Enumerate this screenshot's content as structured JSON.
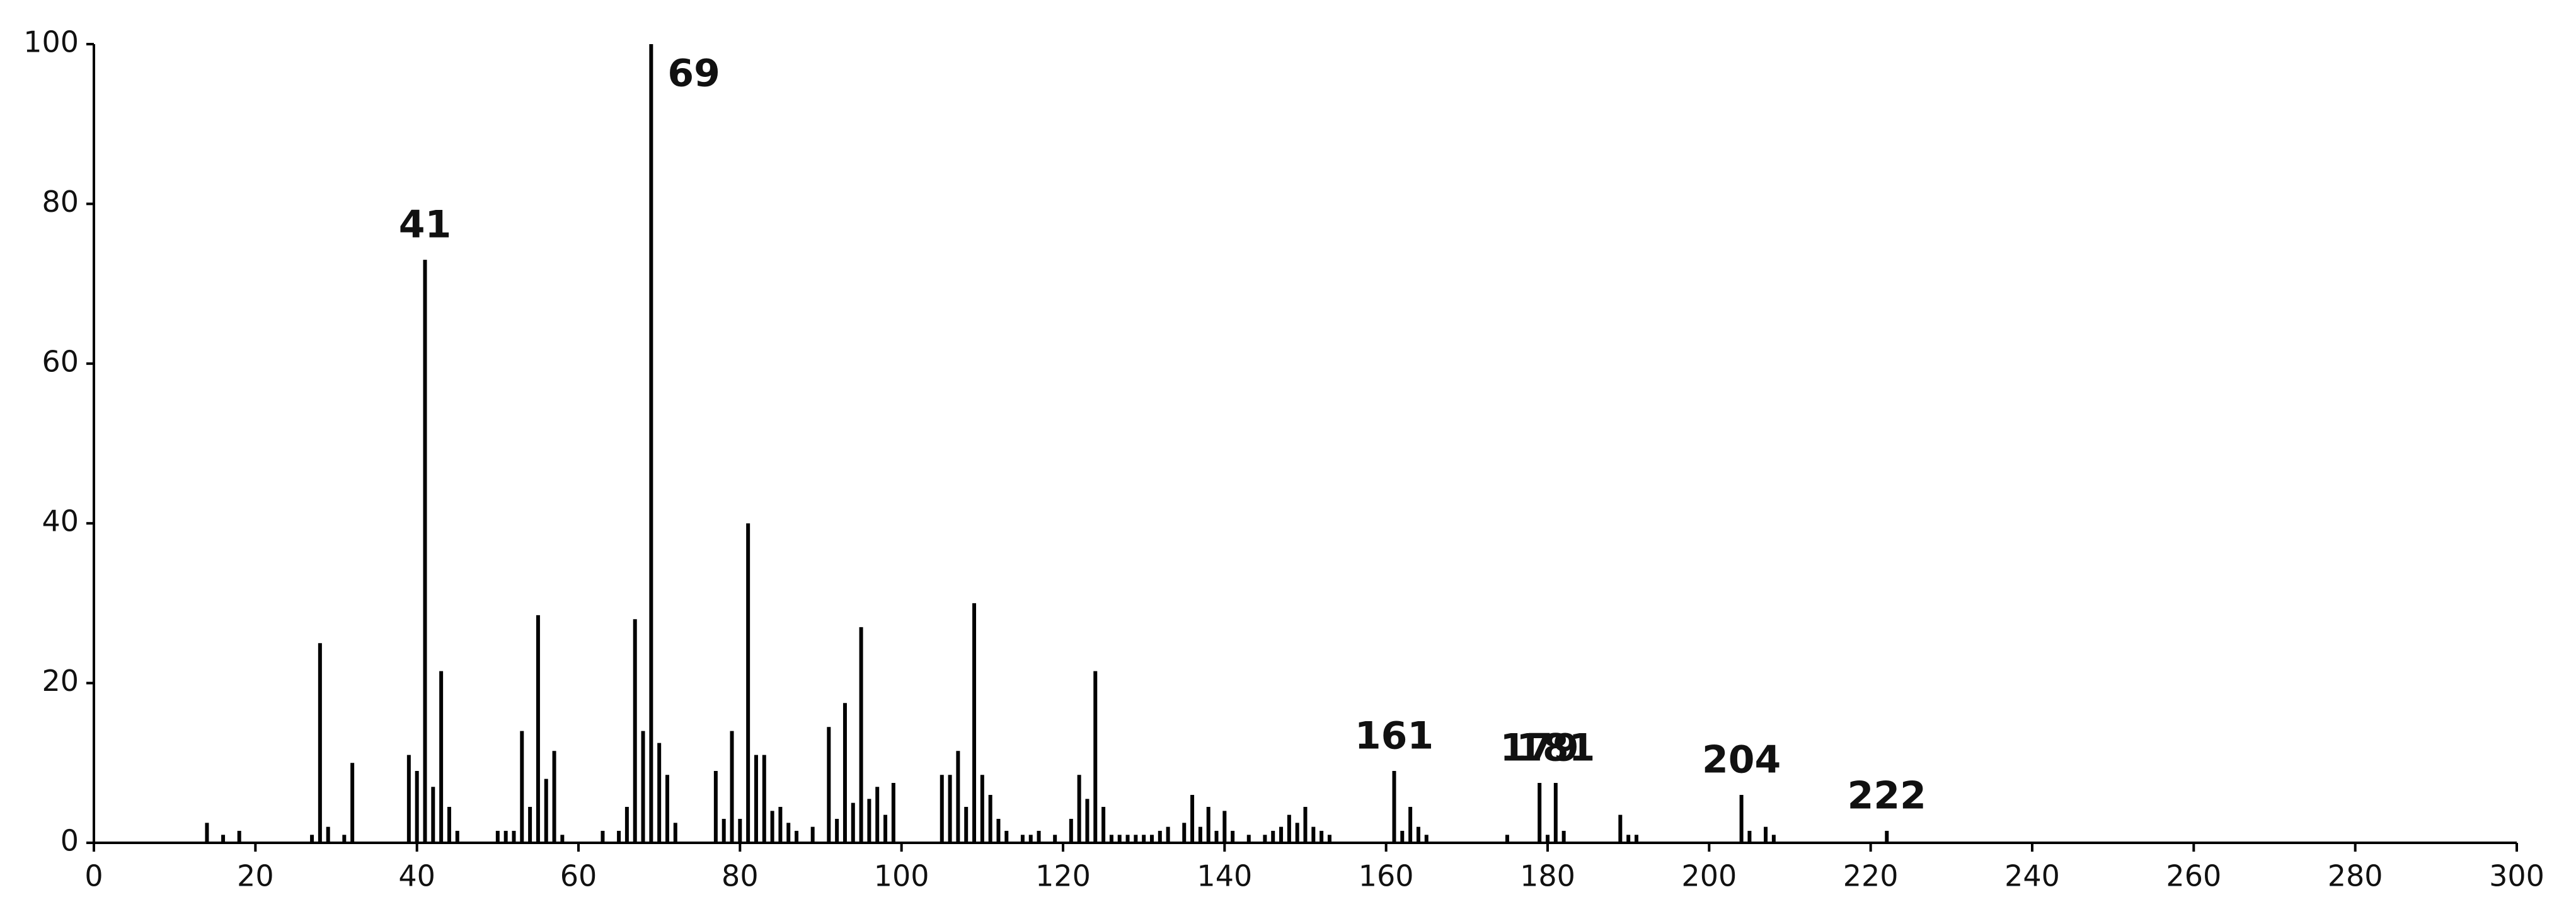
{
  "chart_data": {
    "type": "stem",
    "x": [
      14,
      16,
      18,
      27,
      28,
      29,
      31,
      32,
      39,
      40,
      41,
      42,
      43,
      44,
      45,
      50,
      51,
      52,
      53,
      54,
      55,
      56,
      57,
      58,
      63,
      65,
      66,
      67,
      68,
      69,
      70,
      71,
      72,
      77,
      78,
      79,
      80,
      81,
      82,
      83,
      84,
      85,
      86,
      87,
      89,
      91,
      92,
      93,
      94,
      95,
      96,
      97,
      98,
      99,
      105,
      106,
      107,
      108,
      109,
      110,
      111,
      112,
      113,
      115,
      116,
      117,
      119,
      121,
      122,
      123,
      124,
      125,
      126,
      127,
      128,
      129,
      130,
      131,
      132,
      133,
      135,
      136,
      137,
      138,
      139,
      140,
      141,
      143,
      145,
      146,
      147,
      148,
      149,
      150,
      151,
      152,
      153,
      161,
      162,
      163,
      164,
      165,
      175,
      179,
      180,
      181,
      182,
      189,
      190,
      191,
      204,
      205,
      207,
      208,
      222
    ],
    "values": [
      2.5,
      1,
      1.5,
      1,
      25,
      2,
      1,
      10,
      11,
      9,
      73,
      7,
      21.5,
      4.5,
      1.5,
      1.5,
      1.5,
      1.5,
      14,
      4.5,
      28.5,
      8,
      11.5,
      1,
      1.5,
      1.5,
      4.5,
      28,
      14,
      100,
      12.5,
      8.5,
      2.5,
      9,
      3,
      14,
      3,
      40,
      11,
      11,
      4,
      4.5,
      2.5,
      1.5,
      2,
      14.5,
      3,
      17.5,
      5,
      27,
      5.5,
      7,
      3.5,
      7.5,
      8.5,
      8.5,
      11.5,
      4.5,
      30,
      8.5,
      6,
      3,
      1.5,
      1,
      1,
      1.5,
      1,
      3,
      8.5,
      5.5,
      21.5,
      4.5,
      1,
      1,
      1,
      1,
      1,
      1,
      1.5,
      2,
      2.5,
      6,
      2,
      4.5,
      1.5,
      4,
      1.5,
      1,
      1,
      1.5,
      2,
      3.5,
      2.5,
      4.5,
      2,
      1.5,
      1,
      9,
      1.5,
      4.5,
      2,
      1,
      1,
      7.5,
      1,
      7.5,
      1.5,
      3.5,
      1,
      1,
      6,
      1.5,
      2,
      1,
      1.5
    ],
    "color": "#000000",
    "peak_labels": [
      41,
      69,
      161,
      179,
      181,
      204,
      222
    ],
    "xlim": [
      0,
      300
    ],
    "xticks": [
      0,
      20,
      40,
      60,
      80,
      100,
      120,
      140,
      160,
      180,
      200,
      220,
      240,
      260,
      280,
      300
    ],
    "ylim": [
      0,
      100
    ],
    "yticks": [
      0,
      20,
      40,
      60,
      80,
      100
    ],
    "grid": false
  }
}
